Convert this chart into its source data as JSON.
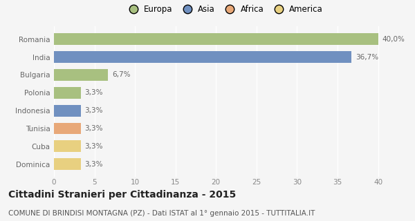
{
  "categories": [
    "Dominica",
    "Cuba",
    "Tunisia",
    "Indonesia",
    "Polonia",
    "Bulgaria",
    "India",
    "Romania"
  ],
  "values": [
    3.3,
    3.3,
    3.3,
    3.3,
    3.3,
    6.7,
    36.7,
    40.0
  ],
  "colors": [
    "#e8d080",
    "#e8d080",
    "#e8a878",
    "#7090c0",
    "#a8c080",
    "#a8c080",
    "#7090c0",
    "#a8c080"
  ],
  "labels": [
    "3,3%",
    "3,3%",
    "3,3%",
    "3,3%",
    "3,3%",
    "6,7%",
    "36,7%",
    "40,0%"
  ],
  "xlim": [
    0,
    42
  ],
  "xticks": [
    0,
    5,
    10,
    15,
    20,
    25,
    30,
    35,
    40
  ],
  "legend_labels": [
    "Europa",
    "Asia",
    "Africa",
    "America"
  ],
  "legend_colors": [
    "#a8c080",
    "#7090c0",
    "#e8a878",
    "#e8d080"
  ],
  "title": "Cittadini Stranieri per Cittadinanza - 2015",
  "subtitle": "COMUNE DI BRINDISI MONTAGNA (PZ) - Dati ISTAT al 1° gennaio 2015 - TUTTITALIA.IT",
  "bg_color": "#f5f5f5",
  "bar_height": 0.65,
  "title_fontsize": 10,
  "subtitle_fontsize": 7.5,
  "label_fontsize": 7.5,
  "tick_fontsize": 7.5,
  "legend_fontsize": 8.5
}
